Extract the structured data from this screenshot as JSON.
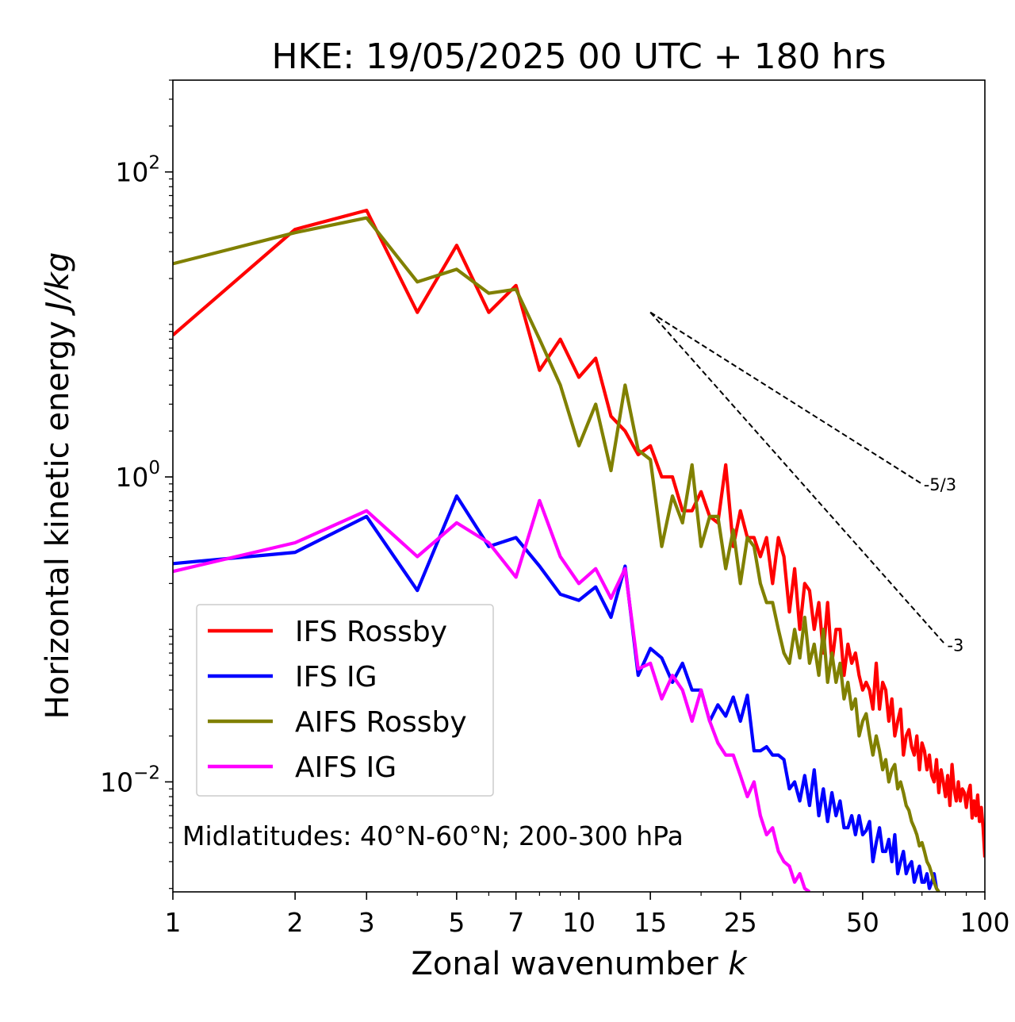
{
  "chart_data": {
    "type": "line",
    "title": "HKE: 19/05/2025 00 UTC + 180 hrs",
    "xlabel_text": "Zonal wavenumber ",
    "xlabel_var": "k",
    "ylabel_text": "Horizontal kinetic energy ",
    "ylabel_unit": "J/kg",
    "x_scale": "log",
    "y_scale": "log",
    "xlim": [
      1,
      100
    ],
    "ylim": [
      0.0019,
      400
    ],
    "x_ticks": [
      1,
      2,
      3,
      5,
      7,
      10,
      15,
      25,
      50,
      100
    ],
    "x_tick_labels": [
      "1",
      "2",
      "3",
      "5",
      "7",
      "10",
      "15",
      "25",
      "50",
      "100"
    ],
    "y_ticks": [
      0.01,
      1,
      100
    ],
    "y_tick_labels": [
      {
        "base": "10",
        "exp": "−2"
      },
      {
        "base": "10",
        "exp": "0"
      },
      {
        "base": "10",
        "exp": "2"
      }
    ],
    "annotation": "Midlatitudes: 40°N-60°N; 200-300 hPa",
    "legend_position": "lower-left",
    "reference_lines": [
      {
        "label": "-5/3",
        "x": [
          15,
          70
        ],
        "y": [
          12.0,
          0.9
        ]
      },
      {
        "label": "-3",
        "x": [
          15,
          80
        ],
        "y": [
          12.0,
          0.0792
        ]
      }
    ],
    "series": [
      {
        "name": "IFS Rossby",
        "color": "#ff0000",
        "values": [
          8.5,
          42,
          56,
          12,
          33,
          12,
          18,
          5.0,
          8.0,
          4.5,
          6.0,
          2.5,
          2.0,
          1.4,
          1.6,
          1.0,
          1.0,
          0.6,
          0.6,
          0.8,
          0.55,
          0.5,
          1.2,
          0.35,
          0.6,
          0.4,
          0.4,
          0.3,
          0.4,
          0.2,
          0.4,
          0.3,
          0.13,
          0.25,
          0.1,
          0.2,
          0.18,
          0.1,
          0.15,
          0.07,
          0.15,
          0.06,
          0.1,
          0.1,
          0.05,
          0.08,
          0.06,
          0.07,
          0.05,
          0.04,
          0.045,
          0.04,
          0.03,
          0.06,
          0.03,
          0.045,
          0.04,
          0.025,
          0.035,
          0.02,
          0.025,
          0.03,
          0.015,
          0.02,
          0.022,
          0.017,
          0.015,
          0.02,
          0.012,
          0.018,
          0.016,
          0.012,
          0.015,
          0.011,
          0.01,
          0.014,
          0.0085,
          0.012,
          0.01,
          0.008,
          0.011,
          0.007,
          0.013,
          0.009,
          0.0075,
          0.01,
          0.0075,
          0.009,
          0.0085,
          0.0068,
          0.0085,
          0.0095,
          0.0058,
          0.0075,
          0.006,
          0.0082,
          0.0055,
          0.0068,
          0.005,
          0.0032
        ]
      },
      {
        "name": "IFS IG",
        "color": "#0000ff",
        "values": [
          0.27,
          0.32,
          0.55,
          0.18,
          0.75,
          0.35,
          0.4,
          0.26,
          0.17,
          0.155,
          0.19,
          0.12,
          0.26,
          0.05,
          0.075,
          0.065,
          0.045,
          0.06,
          0.04,
          0.04,
          0.025,
          0.032,
          0.027,
          0.036,
          0.025,
          0.037,
          0.016,
          0.016,
          0.017,
          0.015,
          0.015,
          0.014,
          0.009,
          0.01,
          0.0075,
          0.011,
          0.007,
          0.012,
          0.006,
          0.009,
          0.0055,
          0.0085,
          0.006,
          0.0075,
          0.005,
          0.005,
          0.006,
          0.0045,
          0.006,
          0.0045,
          0.0048,
          0.0055,
          0.003,
          0.004,
          0.005,
          0.0035,
          0.0035,
          0.0042,
          0.003,
          0.0045,
          0.0025,
          0.003,
          0.0035,
          0.0025,
          0.0028,
          0.003,
          0.0022,
          0.0025,
          0.0028,
          0.0022,
          0.0022,
          0.0025,
          0.002,
          0.0022,
          0.0025,
          0.002,
          0.0019
        ]
      },
      {
        "name": "AIFS Rossby",
        "color": "#808000",
        "values": [
          25,
          40,
          50,
          19,
          23,
          16,
          17,
          8.0,
          4.0,
          1.6,
          3.0,
          1.1,
          4.0,
          1.5,
          1.3,
          0.35,
          0.75,
          0.5,
          1.2,
          0.35,
          0.55,
          0.55,
          0.25,
          0.45,
          0.2,
          0.4,
          0.35,
          0.2,
          0.15,
          0.15,
          0.1,
          0.07,
          0.06,
          0.1,
          0.065,
          0.12,
          0.06,
          0.08,
          0.05,
          0.1,
          0.045,
          0.07,
          0.045,
          0.06,
          0.035,
          0.045,
          0.03,
          0.035,
          0.02,
          0.025,
          0.028,
          0.02,
          0.015,
          0.02,
          0.016,
          0.012,
          0.014,
          0.01,
          0.012,
          0.013,
          0.009,
          0.01,
          0.0085,
          0.007,
          0.0065,
          0.0055,
          0.005,
          0.0045,
          0.0038,
          0.004,
          0.0035,
          0.003,
          0.0028,
          0.0025,
          0.0022,
          0.002,
          0.0019
        ]
      },
      {
        "name": "AIFS IG",
        "color": "#ff00ff",
        "values": [
          0.24,
          0.37,
          0.6,
          0.3,
          0.5,
          0.37,
          0.22,
          0.7,
          0.3,
          0.2,
          0.25,
          0.16,
          0.25,
          0.055,
          0.06,
          0.035,
          0.05,
          0.04,
          0.025,
          0.04,
          0.025,
          0.018,
          0.015,
          0.015,
          0.011,
          0.008,
          0.01,
          0.006,
          0.0045,
          0.005,
          0.0035,
          0.003,
          0.0028,
          0.0022,
          0.0025,
          0.002,
          0.0019
        ]
      }
    ]
  }
}
